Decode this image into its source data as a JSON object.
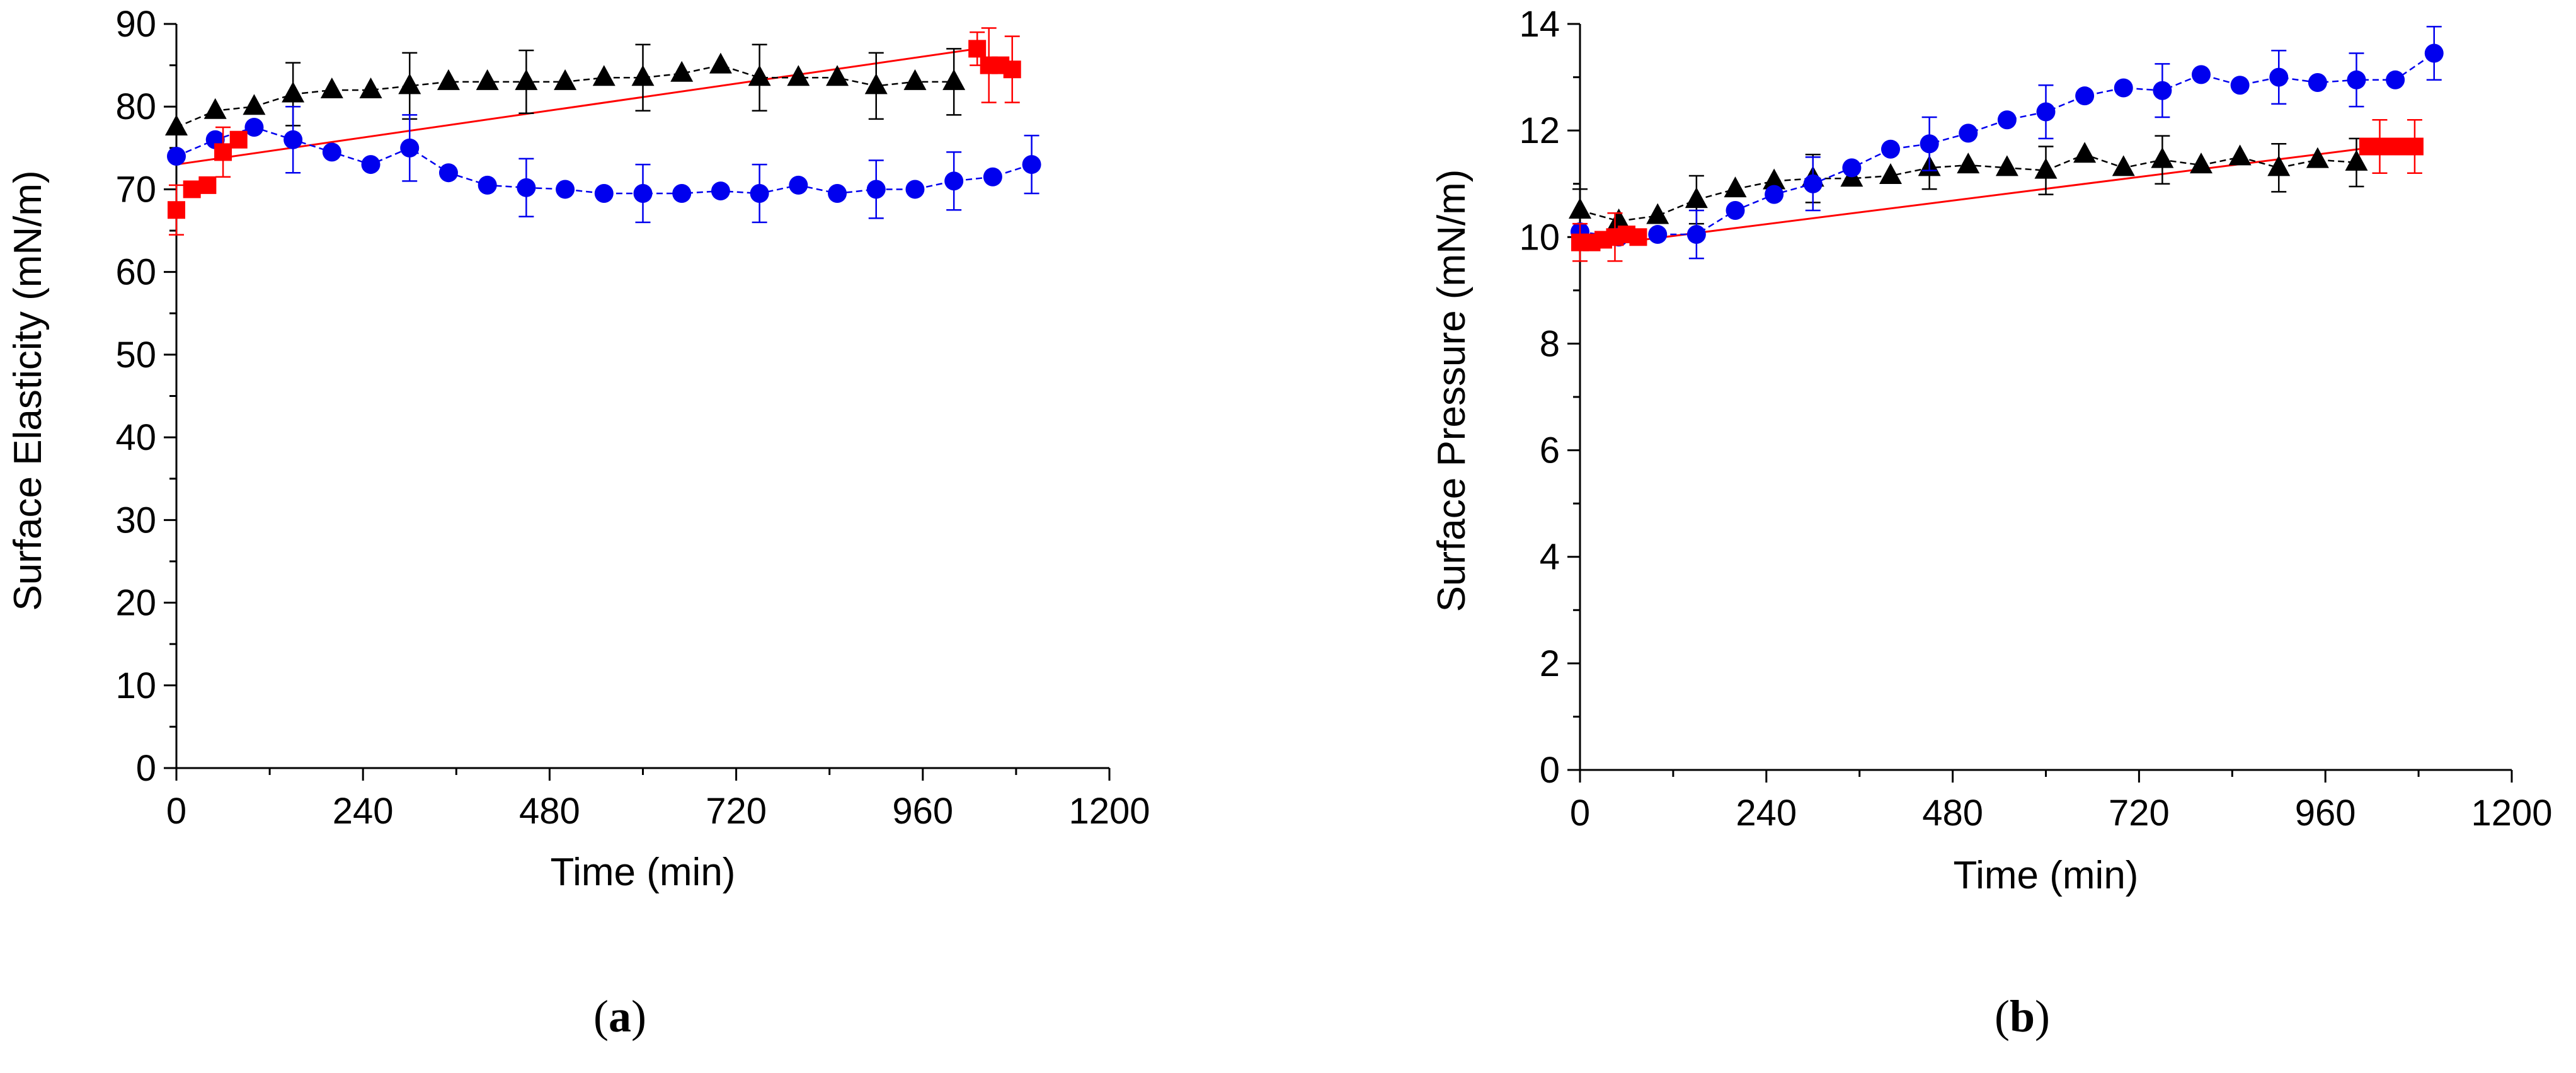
{
  "colors": {
    "triangle": "#000000",
    "circle": "#0000ee",
    "square": "#ff0000",
    "fit": "#ff0000"
  },
  "chart_data": [
    {
      "type": "scatter",
      "panel_label": "a",
      "xlabel": "Time (min)",
      "ylabel": "Surface Elasticity (mN/m)",
      "xlim": [
        0,
        1200
      ],
      "ylim": [
        0,
        90
      ],
      "xticks": [
        0,
        240,
        480,
        720,
        960,
        1200
      ],
      "yticks": [
        0,
        10,
        20,
        30,
        40,
        50,
        60,
        70,
        80,
        90
      ],
      "series": [
        {
          "name": "triangles",
          "marker": "triangle",
          "color": "#000000",
          "connect": true,
          "x": [
            0,
            50,
            100,
            150,
            200,
            250,
            300,
            350,
            400,
            450,
            500,
            550,
            600,
            650,
            700,
            750,
            800,
            850,
            900,
            950,
            1000
          ],
          "y": [
            77.5,
            79.5,
            80,
            81.5,
            82,
            82,
            82.5,
            83,
            83,
            83,
            83,
            83.5,
            83.5,
            84,
            85,
            83.5,
            83.5,
            83.5,
            82.5,
            83,
            83
          ],
          "err": [
            0,
            0,
            0,
            3.8,
            0,
            0,
            4,
            0,
            0,
            3.8,
            0,
            0,
            4,
            0,
            0,
            4,
            0,
            0,
            4,
            0,
            4
          ]
        },
        {
          "name": "circles",
          "marker": "circle",
          "color": "#0000ee",
          "connect": true,
          "x": [
            0,
            50,
            100,
            150,
            200,
            250,
            300,
            350,
            400,
            450,
            500,
            550,
            600,
            650,
            700,
            750,
            800,
            850,
            900,
            950,
            1000,
            1050,
            1100
          ],
          "y": [
            74,
            76,
            77.5,
            76,
            74.5,
            73,
            75,
            72,
            70.5,
            70.2,
            70,
            69.5,
            69.5,
            69.5,
            69.8,
            69.5,
            70.5,
            69.5,
            70,
            70,
            71,
            71.5,
            73
          ],
          "err": [
            0,
            0,
            0,
            4,
            0,
            0,
            4,
            0,
            0,
            3.5,
            0,
            0,
            3.5,
            0,
            0,
            3.5,
            0,
            0,
            3.5,
            0,
            3.5,
            0,
            3.5
          ]
        },
        {
          "name": "squares",
          "marker": "square",
          "color": "#ff0000",
          "connect": false,
          "x": [
            0,
            20,
            40,
            60,
            80,
            1030,
            1045,
            1060,
            1075
          ],
          "y": [
            67.5,
            70,
            70.5,
            74.5,
            76,
            87,
            85,
            85,
            84.5
          ],
          "err": [
            3,
            0,
            0,
            3,
            0,
            2,
            4.5,
            0,
            4
          ]
        }
      ],
      "fit_line": {
        "color": "#ff0000",
        "x": [
          0,
          1030
        ],
        "y": [
          73,
          87
        ]
      }
    },
    {
      "type": "scatter",
      "panel_label": "b",
      "xlabel": "Time (min)",
      "ylabel": "Surface Pressure (mN/m)",
      "xlim": [
        0,
        1200
      ],
      "ylim": [
        0,
        14
      ],
      "xticks": [
        0,
        240,
        480,
        720,
        960,
        1200
      ],
      "yticks": [
        0,
        2,
        4,
        6,
        8,
        10,
        12,
        14
      ],
      "series": [
        {
          "name": "triangles",
          "marker": "triangle",
          "color": "#000000",
          "connect": true,
          "x": [
            0,
            50,
            100,
            150,
            200,
            250,
            300,
            350,
            400,
            450,
            500,
            550,
            600,
            650,
            700,
            750,
            800,
            850,
            900,
            950,
            1000
          ],
          "y": [
            10.5,
            10.3,
            10.4,
            10.7,
            10.9,
            11.05,
            11.1,
            11.1,
            11.15,
            11.3,
            11.35,
            11.3,
            11.25,
            11.55,
            11.3,
            11.45,
            11.35,
            11.5,
            11.3,
            11.45,
            11.4
          ],
          "err": [
            0.4,
            0,
            0,
            0.45,
            0,
            0,
            0.45,
            0,
            0,
            0.4,
            0,
            0,
            0.45,
            0,
            0,
            0.45,
            0,
            0,
            0.45,
            0,
            0.45
          ]
        },
        {
          "name": "circles",
          "marker": "circle",
          "color": "#0000ee",
          "connect": true,
          "x": [
            0,
            50,
            100,
            150,
            200,
            250,
            300,
            350,
            400,
            450,
            500,
            550,
            600,
            650,
            700,
            750,
            800,
            850,
            900,
            950,
            1000,
            1050,
            1100
          ],
          "y": [
            10.1,
            10,
            10.05,
            10.05,
            10.5,
            10.8,
            11,
            11.3,
            11.65,
            11.75,
            11.95,
            12.2,
            12.35,
            12.65,
            12.8,
            12.75,
            13.05,
            12.85,
            13,
            12.9,
            12.95,
            12.95,
            13.45
          ],
          "err": [
            0,
            0,
            0,
            0.45,
            0,
            0,
            0.5,
            0,
            0,
            0.5,
            0,
            0,
            0.5,
            0,
            0,
            0.5,
            0,
            0,
            0.5,
            0,
            0.5,
            0,
            0.5
          ]
        },
        {
          "name": "squares",
          "marker": "square",
          "color": "#ff0000",
          "connect": false,
          "x": [
            0,
            15,
            30,
            45,
            60,
            75,
            1015,
            1030,
            1045,
            1060,
            1075
          ],
          "y": [
            9.9,
            9.9,
            9.95,
            10,
            10.05,
            10,
            11.7,
            11.7,
            11.7,
            11.7,
            11.7
          ],
          "err": [
            0.35,
            0,
            0,
            0.45,
            0,
            0,
            0,
            0.5,
            0,
            0,
            0.5
          ]
        }
      ],
      "fit_line": {
        "color": "#ff0000",
        "x": [
          0,
          1030
        ],
        "y": [
          9.8,
          11.7
        ]
      }
    }
  ]
}
